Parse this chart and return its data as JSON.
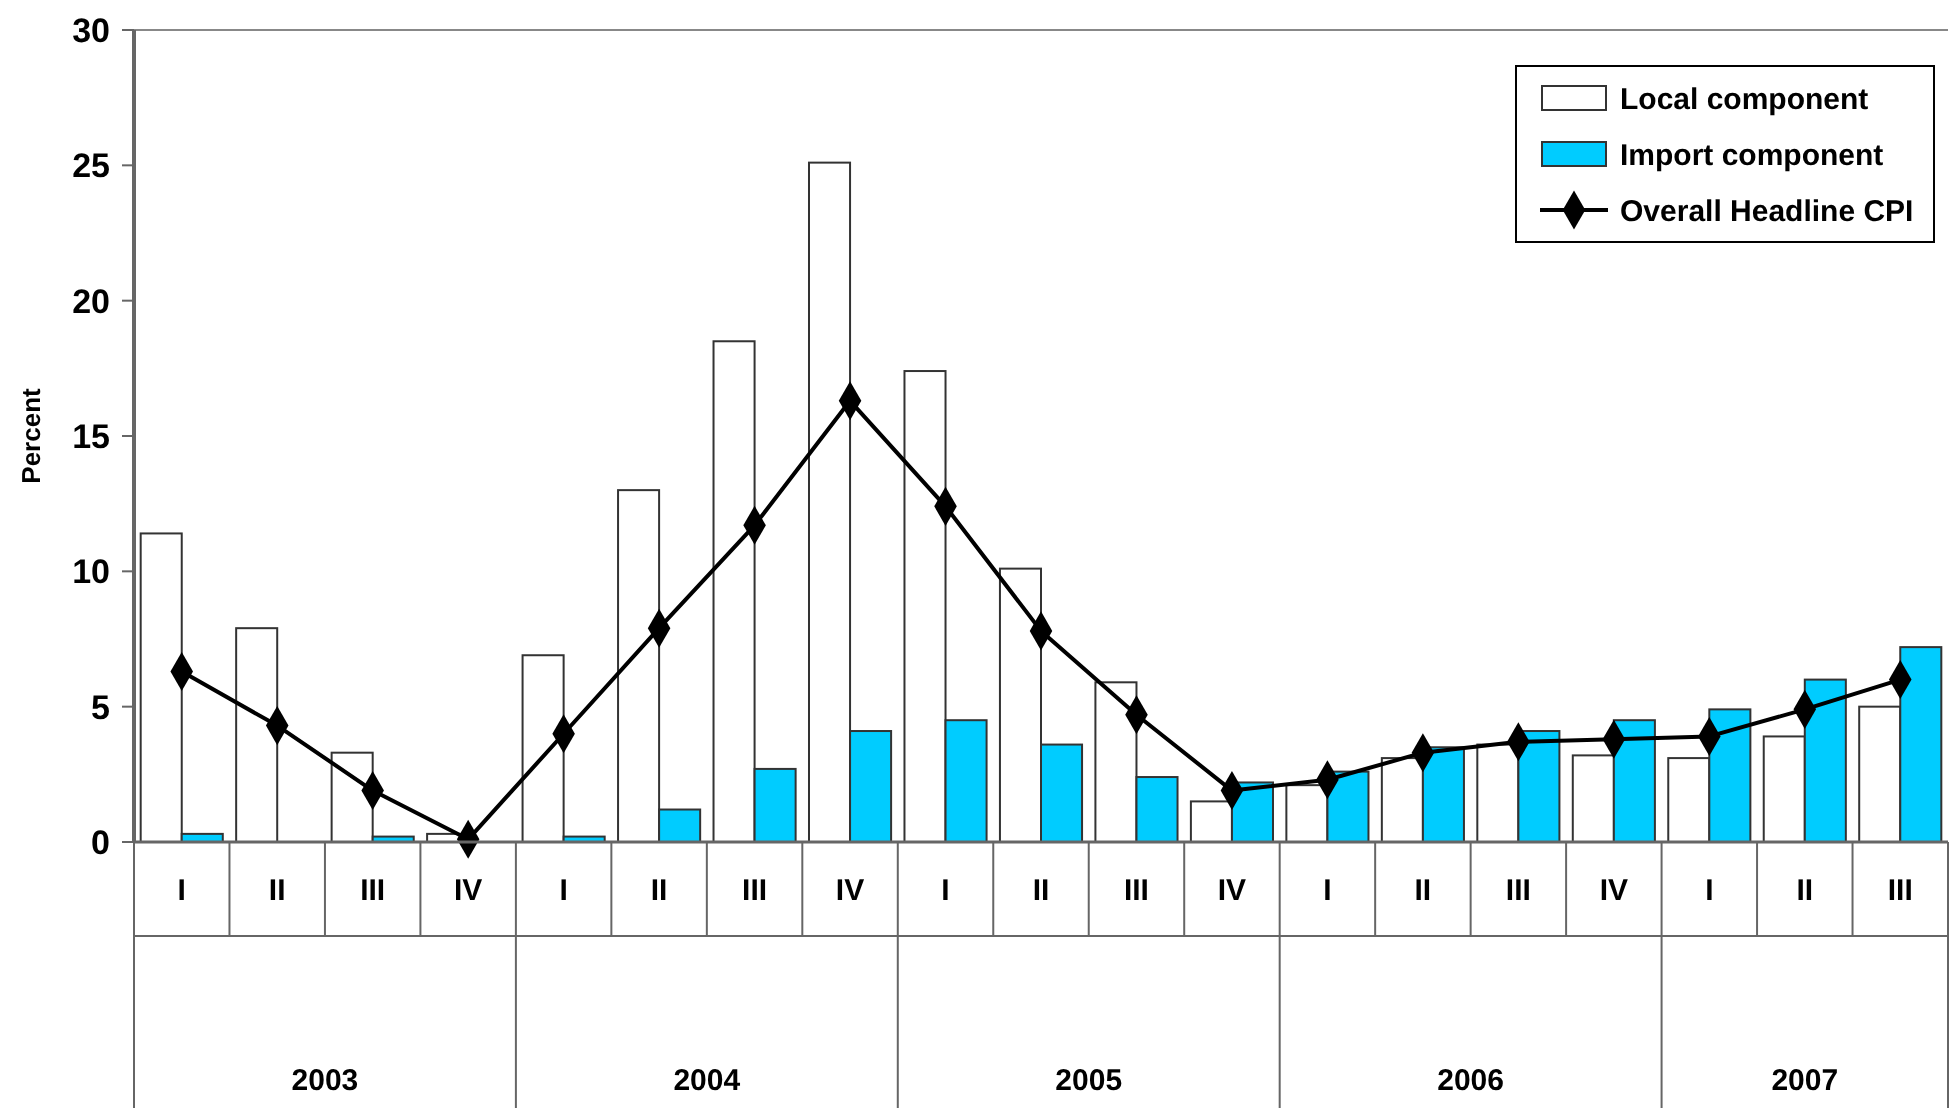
{
  "chart_data": {
    "type": "bar",
    "ylabel": "Percent",
    "categories": [
      "I",
      "II",
      "III",
      "IV",
      "I",
      "II",
      "III",
      "IV",
      "I",
      "II",
      "III",
      "IV",
      "I",
      "II",
      "III",
      "IV",
      "I",
      "II",
      "III"
    ],
    "series": [
      {
        "name": "Local component",
        "color": "#ffffff",
        "values": [
          11.4,
          7.9,
          3.3,
          0.3,
          6.9,
          13.0,
          18.5,
          25.1,
          17.4,
          10.1,
          5.9,
          1.5,
          2.1,
          3.1,
          3.6,
          3.2,
          3.1,
          3.9,
          5.0
        ]
      },
      {
        "name": "Import component",
        "color": "#00ccff",
        "values": [
          0.3,
          0,
          0.2,
          0,
          0.2,
          1.2,
          2.7,
          4.1,
          4.5,
          3.6,
          2.4,
          2.2,
          2.6,
          3.5,
          4.1,
          4.5,
          4.9,
          6.0,
          7.2
        ]
      },
      {
        "name": "Overall Headline CPI",
        "type": "line",
        "color": "#000000",
        "marker": "diamond",
        "values": [
          6.3,
          4.3,
          1.9,
          0.1,
          4.0,
          7.9,
          11.7,
          16.3,
          12.4,
          7.8,
          4.7,
          1.9,
          2.3,
          3.3,
          3.7,
          3.8,
          3.9,
          4.9,
          6.0
        ]
      }
    ],
    "annotations": [
      "2003",
      "2004",
      "2005",
      "2006",
      "2007"
    ],
    "ylim": [
      0,
      30
    ],
    "yticks": [
      0,
      5,
      10,
      15,
      20,
      25,
      30
    ],
    "grid": false,
    "legend": "top right"
  }
}
